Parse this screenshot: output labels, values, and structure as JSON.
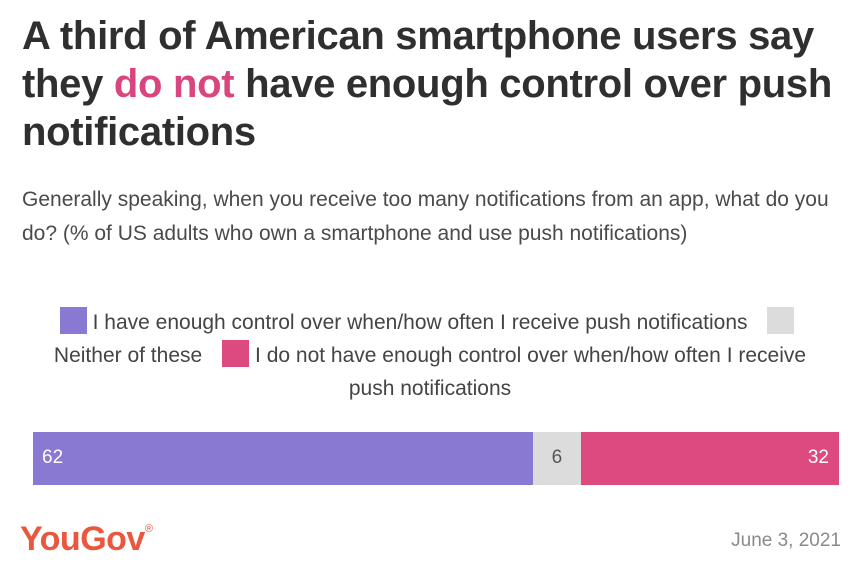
{
  "title": {
    "part1": "A third of American smartphone users say they ",
    "highlight": "do not",
    "part2": " have enough control over push notifications"
  },
  "subtitle": "Generally speaking, when you receive too many notifications from an app, what do you do? (% of US adults who own a smartphone and use push notifications)",
  "footer": {
    "logo": "YouGov",
    "logo_mark": "®",
    "date": "June 3, 2021"
  },
  "chart_data": {
    "type": "bar",
    "orientation": "horizontal",
    "stacked": true,
    "series": [
      {
        "name": "I have enough control over when/how often I receive push notifications",
        "values": [
          62
        ],
        "color": "#8a79d3"
      },
      {
        "name": "Neither of these",
        "values": [
          6
        ],
        "color": "#dcdcdc"
      },
      {
        "name": "I do not have enough control over when/how often I receive push notifications",
        "values": [
          32
        ],
        "color": "#dd4a7f"
      }
    ],
    "data_labels": [
      "62",
      "6",
      "32"
    ],
    "legend_position": "top"
  }
}
